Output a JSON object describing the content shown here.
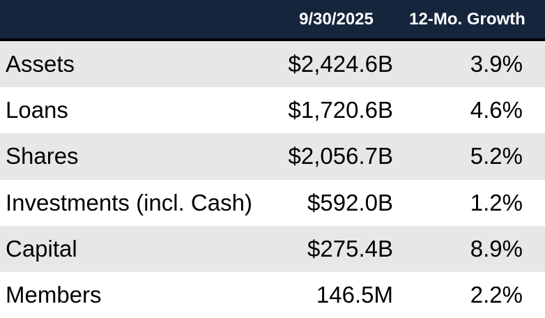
{
  "table": {
    "header": {
      "date_label": "9/30/2025",
      "growth_label": "12-Mo. Growth"
    },
    "rows": [
      {
        "label": "Assets",
        "value": "$2,424.6B",
        "growth": "3.9%"
      },
      {
        "label": "Loans",
        "value": "$1,720.6B",
        "growth": "4.6%"
      },
      {
        "label": "Shares",
        "value": "$2,056.7B",
        "growth": "5.2%"
      },
      {
        "label": "Investments (incl. Cash)",
        "value": "$592.0B",
        "growth": "1.2%"
      },
      {
        "label": "Capital",
        "value": "$275.4B",
        "growth": "8.9%"
      },
      {
        "label": "Members",
        "value": "146.5M",
        "growth": "2.2%"
      }
    ],
    "colors": {
      "header_bg": "#15263C",
      "header_text": "#FFFFFF",
      "row_alt_bg": "#E7E7E7",
      "row_bg": "#FFFFFF",
      "separator": "#000000",
      "body_text": "#000000"
    }
  },
  "chart_data": {
    "type": "table",
    "title": "",
    "columns": [
      "",
      "9/30/2025",
      "12-Mo. Growth"
    ],
    "rows": [
      [
        "Assets",
        "$2,424.6B",
        "3.9%"
      ],
      [
        "Loans",
        "$1,720.6B",
        "4.6%"
      ],
      [
        "Shares",
        "$2,056.7B",
        "5.2%"
      ],
      [
        "Investments (incl. Cash)",
        "$592.0B",
        "1.2%"
      ],
      [
        "Capital",
        "$275.4B",
        "8.9%"
      ],
      [
        "Members",
        "146.5M",
        "2.2%"
      ]
    ],
    "layout": {
      "header_background": "#15263C",
      "alternating_row_background": "#E7E7E7",
      "value_columns_alignment": "right",
      "label_column_alignment": "left"
    }
  }
}
